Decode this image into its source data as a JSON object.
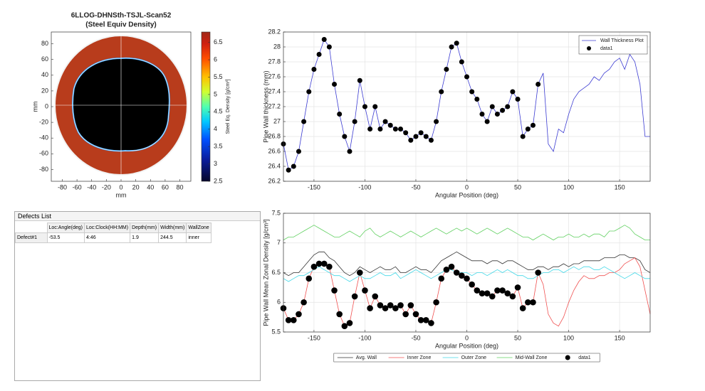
{
  "chart_data": [
    {
      "type": "image",
      "title": "6LLOG-DHNSth-TSJL-Scan52",
      "subtitle": "(Steel Equiv Density)",
      "xlabel": "mm",
      "ylabel": "mm",
      "xlim": [
        -95,
        95
      ],
      "xticks": [
        -80,
        -60,
        -40,
        -20,
        0,
        20,
        40,
        60,
        80
      ],
      "ylim": [
        -95,
        95
      ],
      "yticks": [
        -80,
        -60,
        -40,
        -20,
        0,
        20,
        40,
        60,
        80
      ],
      "colorbar_label": "Steel Eq. Density [g/cm³]",
      "clim": [
        2.5,
        6.8
      ],
      "cticks": [
        2.5,
        3,
        3.5,
        4,
        4.5,
        5,
        5.5,
        6,
        6.5
      ]
    },
    {
      "type": "line",
      "xlabel": "Angular Position (deg)",
      "ylabel": "Pipe Wall thickness (mm)",
      "xlim": [
        -180,
        180
      ],
      "xticks": [
        -150,
        -100,
        -50,
        0,
        50,
        100,
        150
      ],
      "ylim": [
        26.2,
        28.2
      ],
      "yticks": [
        26.2,
        26.4,
        26.6,
        26.8,
        27,
        27.2,
        27.4,
        27.6,
        27.8,
        28,
        28.2
      ],
      "grid": true,
      "legend": "northeast",
      "x": [
        -180,
        -175,
        -170,
        -165,
        -160,
        -155,
        -150,
        -145,
        -140,
        -135,
        -130,
        -125,
        -120,
        -115,
        -110,
        -105,
        -100,
        -95,
        -90,
        -85,
        -80,
        -75,
        -70,
        -65,
        -60,
        -55,
        -50,
        -45,
        -40,
        -35,
        -30,
        -25,
        -20,
        -15,
        -10,
        -5,
        0,
        5,
        10,
        15,
        20,
        25,
        30,
        35,
        40,
        45,
        50,
        55,
        60,
        65,
        70,
        75,
        80,
        85,
        90,
        95,
        100,
        105,
        110,
        115,
        120,
        125,
        130,
        135,
        140,
        145,
        150,
        155,
        160,
        165,
        170,
        175,
        180
      ],
      "series": [
        {
          "name": "Wall Thickness Plot",
          "color": "#3c3cd2",
          "style": "line",
          "values": [
            26.7,
            26.35,
            26.4,
            26.6,
            27.0,
            27.4,
            27.7,
            27.9,
            28.1,
            28.0,
            27.5,
            27.1,
            26.8,
            26.6,
            27.0,
            27.55,
            27.2,
            26.9,
            27.2,
            26.9,
            27.0,
            26.95,
            26.9,
            26.9,
            26.85,
            26.75,
            26.8,
            26.85,
            26.8,
            26.75,
            27.0,
            27.4,
            27.7,
            28.0,
            28.05,
            27.8,
            27.6,
            27.4,
            27.3,
            27.1,
            27.0,
            27.2,
            27.1,
            27.15,
            27.2,
            27.4,
            27.3,
            26.8,
            26.9,
            26.95,
            27.5,
            27.65,
            26.7,
            26.6,
            26.9,
            26.85,
            27.1,
            27.3,
            27.4,
            27.45,
            27.5,
            27.6,
            27.55,
            27.65,
            27.7,
            27.8,
            27.85,
            27.7,
            27.9,
            27.8,
            27.5,
            26.8,
            26.8
          ]
        },
        {
          "name": "data1",
          "color": "#000000",
          "style": "marker",
          "values": [
            26.7,
            26.35,
            26.4,
            26.6,
            27.0,
            27.4,
            27.7,
            27.9,
            28.1,
            28.0,
            27.5,
            27.1,
            26.8,
            26.6,
            27.0,
            27.55,
            27.2,
            26.9,
            27.2,
            26.9,
            27.0,
            26.95,
            26.9,
            26.9,
            26.85,
            26.75,
            26.8,
            26.85,
            26.8,
            26.75,
            27.0,
            27.4,
            27.7,
            28.0,
            28.05,
            27.8,
            27.6,
            27.4,
            27.3,
            27.1,
            27.0,
            27.2,
            27.1,
            27.15,
            27.2,
            27.4,
            27.3,
            26.8,
            26.9,
            26.95,
            27.5,
            null,
            null,
            null,
            null,
            null,
            null,
            null,
            null,
            null,
            null,
            null,
            null,
            null,
            null,
            null,
            null,
            null,
            null,
            null,
            null,
            null,
            null
          ]
        }
      ]
    },
    {
      "type": "line",
      "xlabel": "Angular Position (deg)",
      "ylabel": "Pipe Wall Mean Zonal Density [g/cm³]",
      "xlim": [
        -180,
        180
      ],
      "xticks": [
        -150,
        -100,
        -50,
        0,
        50,
        100,
        150
      ],
      "ylim": [
        5.5,
        7.5
      ],
      "yticks": [
        5.5,
        6,
        6.5,
        7,
        7.5
      ],
      "grid": true,
      "legend": "below",
      "x": [
        -180,
        -175,
        -170,
        -165,
        -160,
        -155,
        -150,
        -145,
        -140,
        -135,
        -130,
        -125,
        -120,
        -115,
        -110,
        -105,
        -100,
        -95,
        -90,
        -85,
        -80,
        -75,
        -70,
        -65,
        -60,
        -55,
        -50,
        -45,
        -40,
        -35,
        -30,
        -25,
        -20,
        -15,
        -10,
        -5,
        0,
        5,
        10,
        15,
        20,
        25,
        30,
        35,
        40,
        45,
        50,
        55,
        60,
        65,
        70,
        75,
        80,
        85,
        90,
        95,
        100,
        105,
        110,
        115,
        120,
        125,
        130,
        135,
        140,
        145,
        150,
        155,
        160,
        165,
        170,
        175,
        180
      ],
      "series": [
        {
          "name": "Avg. Wall",
          "color": "#333333",
          "style": "line",
          "values": [
            6.5,
            6.45,
            6.5,
            6.5,
            6.6,
            6.7,
            6.8,
            6.85,
            6.85,
            6.75,
            6.7,
            6.6,
            6.5,
            6.45,
            6.5,
            6.6,
            6.55,
            6.5,
            6.55,
            6.6,
            6.55,
            6.55,
            6.6,
            6.5,
            6.5,
            6.55,
            6.6,
            6.55,
            6.55,
            6.5,
            6.6,
            6.7,
            6.75,
            6.8,
            6.85,
            6.8,
            6.75,
            6.7,
            6.7,
            6.7,
            6.65,
            6.7,
            6.7,
            6.65,
            6.7,
            6.7,
            6.65,
            6.6,
            6.55,
            6.55,
            6.6,
            6.6,
            6.55,
            6.6,
            6.6,
            6.65,
            6.6,
            6.65,
            6.65,
            6.7,
            6.7,
            6.7,
            6.7,
            6.75,
            6.75,
            6.75,
            6.8,
            6.8,
            6.75,
            6.75,
            6.7,
            6.55,
            6.5
          ]
        },
        {
          "name": "Inner Zone",
          "color": "#f05050",
          "style": "line",
          "values": [
            5.9,
            5.7,
            5.7,
            5.8,
            6.0,
            6.4,
            6.6,
            6.65,
            6.65,
            6.6,
            6.2,
            5.8,
            5.6,
            5.65,
            6.1,
            6.5,
            6.2,
            5.9,
            6.1,
            5.95,
            5.9,
            5.95,
            5.9,
            5.95,
            5.8,
            5.95,
            5.8,
            5.7,
            5.7,
            5.65,
            6.0,
            6.4,
            6.55,
            6.6,
            6.5,
            6.45,
            6.4,
            6.3,
            6.2,
            6.15,
            6.15,
            6.1,
            6.2,
            6.2,
            6.15,
            6.1,
            6.25,
            5.9,
            6.0,
            6.0,
            6.5,
            6.3,
            5.8,
            5.65,
            5.6,
            5.75,
            6.0,
            6.2,
            6.35,
            6.45,
            6.4,
            6.4,
            6.45,
            6.45,
            6.5,
            6.5,
            6.55,
            6.65,
            6.7,
            6.75,
            6.6,
            6.2,
            5.8
          ]
        },
        {
          "name": "Outer Zone",
          "color": "#40d8e8",
          "style": "line",
          "values": [
            6.4,
            6.35,
            6.4,
            6.45,
            6.45,
            6.5,
            6.55,
            6.6,
            6.55,
            6.5,
            6.45,
            6.45,
            6.4,
            6.35,
            6.4,
            6.45,
            6.4,
            6.4,
            6.45,
            6.5,
            6.45,
            6.45,
            6.5,
            6.4,
            6.45,
            6.5,
            6.55,
            6.5,
            6.45,
            6.4,
            6.45,
            6.5,
            6.55,
            6.55,
            6.5,
            6.5,
            6.5,
            6.45,
            6.5,
            6.5,
            6.45,
            6.5,
            6.55,
            6.5,
            6.55,
            6.5,
            6.45,
            6.45,
            6.4,
            6.4,
            6.45,
            6.5,
            6.5,
            6.55,
            6.55,
            6.5,
            6.55,
            6.6,
            6.55,
            6.6,
            6.6,
            6.55,
            6.55,
            6.6,
            6.55,
            6.5,
            6.45,
            6.4,
            6.45,
            6.5,
            6.45,
            6.4,
            6.4
          ]
        },
        {
          "name": "Mid-Wall Zone",
          "color": "#60d060",
          "style": "line",
          "values": [
            7.05,
            7.1,
            7.1,
            7.15,
            7.2,
            7.25,
            7.3,
            7.25,
            7.2,
            7.15,
            7.1,
            7.1,
            7.15,
            7.2,
            7.15,
            7.1,
            7.2,
            7.25,
            7.15,
            7.1,
            7.15,
            7.2,
            7.15,
            7.1,
            7.15,
            7.2,
            7.15,
            7.1,
            7.15,
            7.2,
            7.25,
            7.2,
            7.15,
            7.2,
            7.25,
            7.2,
            7.25,
            7.2,
            7.15,
            7.2,
            7.25,
            7.2,
            7.15,
            7.2,
            7.25,
            7.2,
            7.15,
            7.1,
            7.1,
            7.05,
            7.1,
            7.15,
            7.1,
            7.05,
            7.1,
            7.1,
            7.15,
            7.1,
            7.1,
            7.15,
            7.1,
            7.15,
            7.15,
            7.1,
            7.2,
            7.2,
            7.25,
            7.3,
            7.25,
            7.15,
            7.1,
            7.05,
            7.05
          ]
        },
        {
          "name": "data1",
          "color": "#000000",
          "style": "marker",
          "values": [
            5.9,
            5.7,
            5.7,
            5.8,
            6.0,
            6.4,
            6.6,
            6.65,
            6.65,
            6.6,
            6.2,
            5.8,
            5.6,
            5.65,
            6.1,
            6.5,
            6.2,
            5.9,
            6.1,
            5.95,
            5.9,
            5.95,
            5.9,
            5.95,
            5.8,
            5.95,
            5.8,
            5.7,
            5.7,
            5.65,
            6.0,
            6.4,
            6.55,
            6.6,
            6.5,
            6.45,
            6.4,
            6.3,
            6.2,
            6.15,
            6.15,
            6.1,
            6.2,
            6.2,
            6.15,
            6.1,
            6.25,
            5.9,
            6.0,
            6.0,
            6.5,
            null,
            null,
            null,
            null,
            null,
            null,
            null,
            null,
            null,
            null,
            null,
            null,
            null,
            null,
            null,
            null,
            null,
            null,
            null,
            null,
            null,
            null
          ]
        }
      ]
    }
  ],
  "table": {
    "title": "Defects List",
    "headers": [
      "Loc:Angle(deg)",
      "Loc:Clock(HH:MM)",
      "Depth(mm)",
      "Width(mm)",
      "WallZone"
    ],
    "rows": [
      [
        "Defect#1",
        "-53.5",
        "4:46",
        "1.9",
        "244.5",
        "inner"
      ]
    ]
  }
}
